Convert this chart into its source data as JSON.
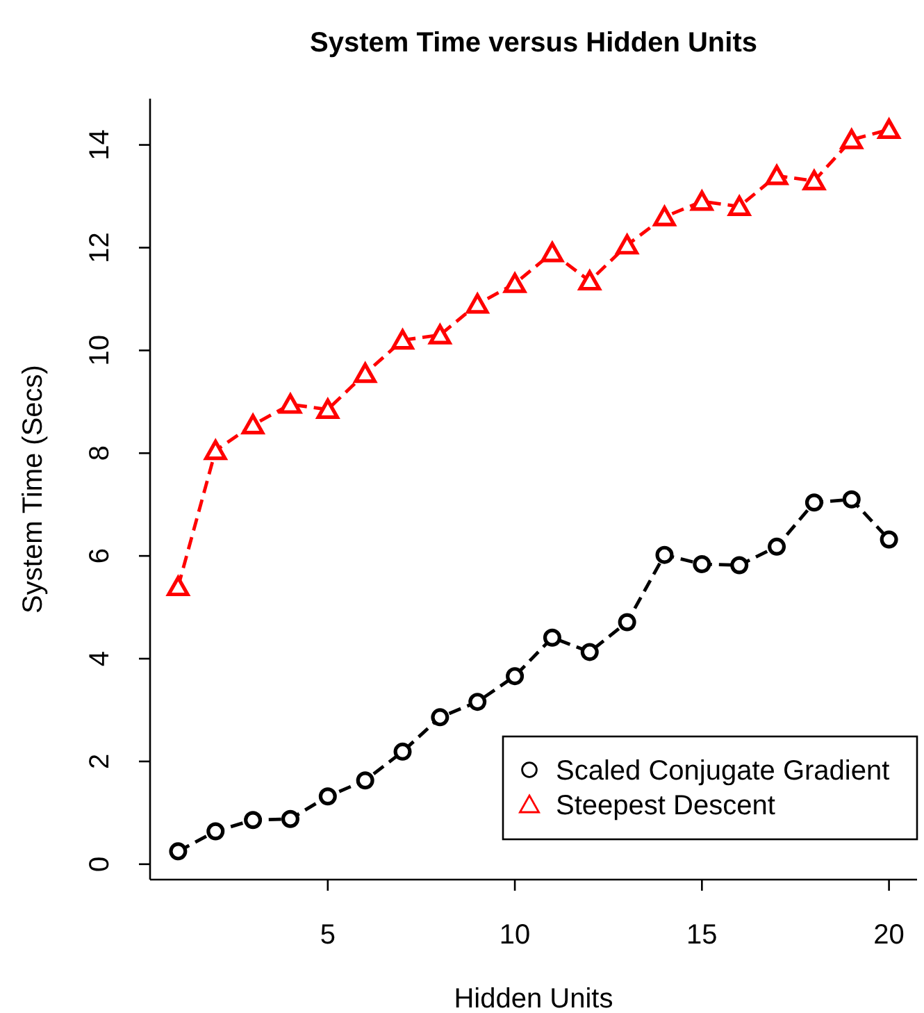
{
  "chart_data": {
    "type": "line",
    "title": "System Time versus Hidden Units",
    "xlabel": "Hidden Units",
    "ylabel": "System Time (Secs)",
    "x": [
      1,
      2,
      3,
      4,
      5,
      6,
      7,
      8,
      9,
      10,
      11,
      12,
      13,
      14,
      15,
      16,
      17,
      18,
      19,
      20
    ],
    "xlim": [
      0.25,
      20.75
    ],
    "xticks": [
      5,
      10,
      15,
      20
    ],
    "ylim": [
      -0.3,
      14.9
    ],
    "yticks": [
      0,
      2,
      4,
      6,
      8,
      10,
      12,
      14
    ],
    "series": [
      {
        "name": "Scaled Conjugate Gradient",
        "color": "#000000",
        "marker": "circle",
        "values": [
          0.25,
          0.64,
          0.86,
          0.88,
          1.32,
          1.63,
          2.19,
          2.86,
          3.16,
          3.66,
          4.41,
          4.13,
          4.71,
          6.02,
          5.84,
          5.82,
          6.18,
          7.04,
          7.1,
          6.32
        ]
      },
      {
        "name": "Steepest Descent",
        "color": "#ff0000",
        "marker": "triangle",
        "values": [
          5.4,
          8.05,
          8.55,
          8.95,
          8.85,
          9.55,
          10.2,
          10.3,
          10.9,
          11.3,
          11.9,
          11.35,
          12.05,
          12.6,
          12.9,
          12.8,
          13.4,
          13.3,
          14.1,
          14.3
        ]
      }
    ],
    "line_style": "dashed",
    "legend": "bottom right"
  }
}
